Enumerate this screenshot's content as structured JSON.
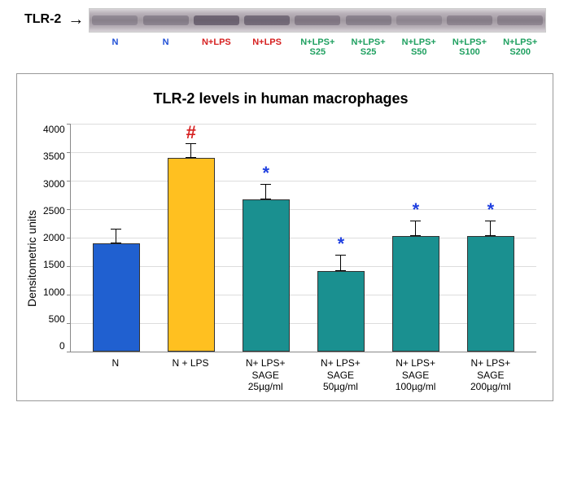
{
  "blot": {
    "protein_label": "TLR-2",
    "lanes": [
      {
        "label": "N",
        "color": "#1f4fd6",
        "intensity": 0.25
      },
      {
        "label": "N",
        "color": "#1f4fd6",
        "intensity": 0.3
      },
      {
        "label": "N+LPS",
        "color": "#d62020",
        "intensity": 0.55
      },
      {
        "label": "N+LPS",
        "color": "#d62020",
        "intensity": 0.5
      },
      {
        "label": "N+LPS+\nS25",
        "color": "#1fa060",
        "intensity": 0.35
      },
      {
        "label": "N+LPS+\nS25",
        "color": "#1fa060",
        "intensity": 0.3
      },
      {
        "label": "N+LPS+\nS50",
        "color": "#1fa060",
        "intensity": 0.2
      },
      {
        "label": "N+LPS+\nS100",
        "color": "#1fa060",
        "intensity": 0.28
      },
      {
        "label": "N+LPS+\nS200",
        "color": "#1fa060",
        "intensity": 0.28
      }
    ]
  },
  "chart": {
    "title": "TLR-2 levels in human macrophages",
    "ylabel": "Densitometric units",
    "ymin": 0,
    "ymax": 4000,
    "ytick_step": 500,
    "yticks": [
      "0",
      "500",
      "1000",
      "1500",
      "2000",
      "2500",
      "3000",
      "3500",
      "4000"
    ],
    "bars": [
      {
        "label": "N",
        "value": 1900,
        "err": 260,
        "color": "#2060d0",
        "sig": "",
        "sig_color": ""
      },
      {
        "label": "N + LPS",
        "value": 3400,
        "err": 260,
        "color": "#ffc020",
        "sig": "#",
        "sig_color": "#d62020"
      },
      {
        "label": "N+ LPS+\nSAGE\n25µg/ml",
        "value": 2680,
        "err": 260,
        "color": "#1a9090",
        "sig": "*",
        "sig_color": "#2040e0"
      },
      {
        "label": "N+ LPS+\nSAGE\n50µg/ml",
        "value": 1420,
        "err": 280,
        "color": "#1a9090",
        "sig": "*",
        "sig_color": "#2040e0"
      },
      {
        "label": "N+ LPS+\nSAGE\n100µg/ml",
        "value": 2030,
        "err": 270,
        "color": "#1a9090",
        "sig": "*",
        "sig_color": "#2040e0"
      },
      {
        "label": "N+ LPS+\nSAGE\n200µg/ml",
        "value": 2030,
        "err": 270,
        "color": "#1a9090",
        "sig": "*",
        "sig_color": "#2040e0"
      }
    ],
    "grid_color": "#dddddd",
    "axis_color": "#888888",
    "background": "#ffffff"
  }
}
